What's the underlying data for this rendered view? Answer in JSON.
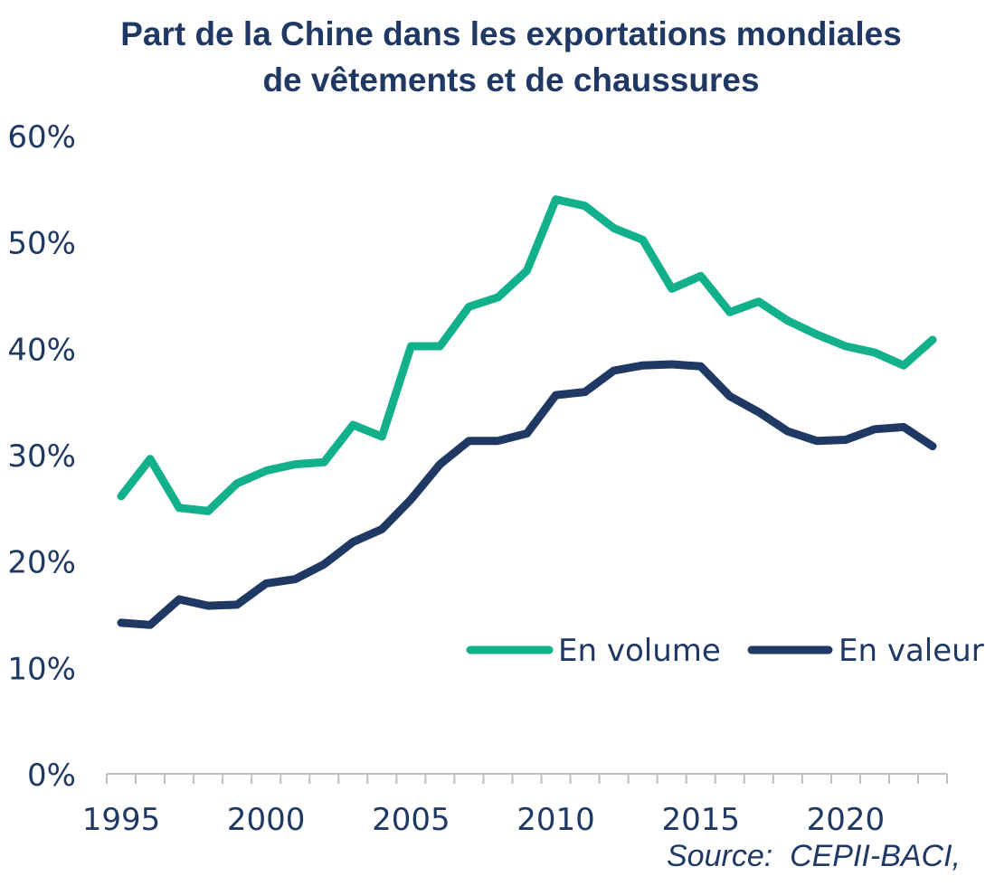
{
  "chart_data": {
    "type": "line",
    "title": "Part de la Chine dans les exportations mondiales de vêtements et de chaussures",
    "xlabel": "",
    "ylabel": "",
    "x": [
      1995,
      1996,
      1997,
      1998,
      1999,
      2000,
      2001,
      2002,
      2003,
      2004,
      2005,
      2006,
      2007,
      2008,
      2009,
      2010,
      2011,
      2012,
      2013,
      2014,
      2015,
      2016,
      2017,
      2018,
      2019,
      2020,
      2021,
      2022,
      2023
    ],
    "series": [
      {
        "name": "En volume",
        "color": "#13b08c",
        "values": [
          26.1,
          29.6,
          25.0,
          24.7,
          27.3,
          28.5,
          29.1,
          29.3,
          32.8,
          31.7,
          40.2,
          40.2,
          43.9,
          44.8,
          47.3,
          54.0,
          53.4,
          51.3,
          50.2,
          45.6,
          46.8,
          43.4,
          44.4,
          42.6,
          41.3,
          40.2,
          39.6,
          38.4,
          40.8
        ]
      },
      {
        "name": "En valeur",
        "color": "#1f3864",
        "values": [
          14.2,
          14.0,
          16.4,
          15.8,
          15.9,
          17.9,
          18.3,
          19.7,
          21.8,
          23.0,
          25.8,
          29.1,
          31.3,
          31.3,
          32.0,
          35.6,
          35.9,
          37.9,
          38.4,
          38.5,
          38.3,
          35.5,
          34.0,
          32.2,
          31.3,
          31.4,
          32.4,
          32.6,
          30.8
        ]
      }
    ],
    "ylim": [
      0,
      60
    ],
    "xlim": [
      1995,
      2023
    ],
    "yticks": [
      "0%",
      "10%",
      "20%",
      "30%",
      "40%",
      "50%",
      "60%"
    ],
    "xticks": [
      "1995",
      "2000",
      "2005",
      "2010",
      "2015",
      "2020"
    ],
    "grid": false,
    "legend_position": "right"
  },
  "source": "Source:  CEPII-BACI,"
}
